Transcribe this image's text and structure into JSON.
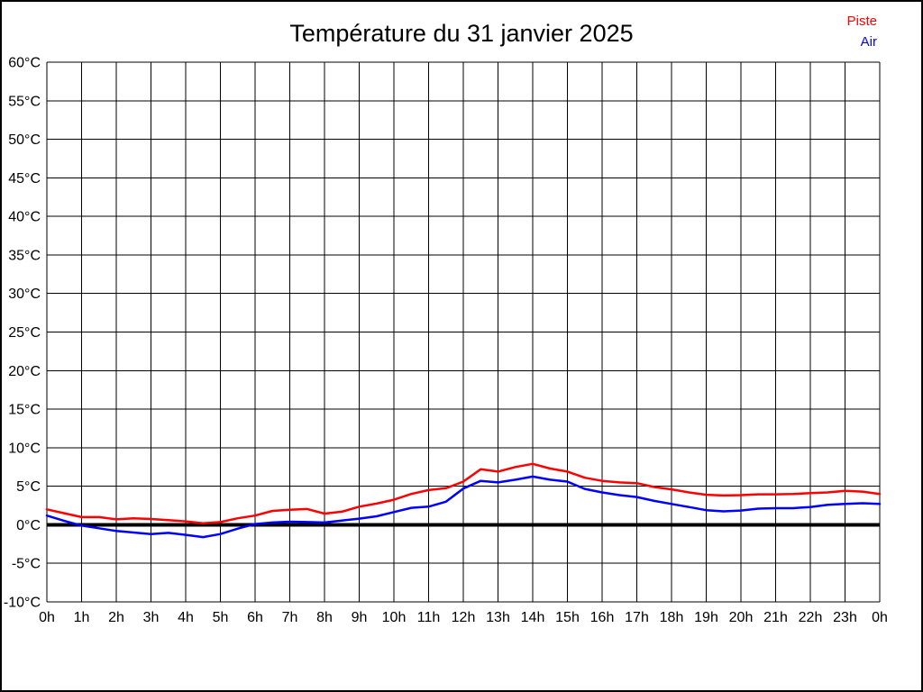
{
  "title": "Température du 31 janvier 2025",
  "legend": {
    "position": "top-right",
    "items": [
      {
        "label": "Piste",
        "color": "#ff0000"
      },
      {
        "label": "Air",
        "color": "#0000ff"
      }
    ]
  },
  "colors": {
    "background": "#ffffff",
    "border": "#000000",
    "grid": "#000000",
    "zero_line": "#000000",
    "tick_text": "#000000",
    "piste": "#ff0000",
    "air": "#0000ff"
  },
  "chart_data": {
    "type": "line",
    "title": "Température du 31 janvier 2025",
    "xlabel": "",
    "ylabel": "",
    "grid": true,
    "legend_position": "top-right",
    "xlim": [
      0,
      24
    ],
    "ylim": [
      -10,
      60
    ],
    "y_ticks": [
      60,
      55,
      50,
      45,
      40,
      35,
      30,
      25,
      20,
      15,
      10,
      5,
      0,
      -5,
      -10
    ],
    "y_tick_labels": [
      "60°C",
      "55°C",
      "50°C",
      "45°C",
      "40°C",
      "35°C",
      "30°C",
      "25°C",
      "20°C",
      "15°C",
      "10°C",
      "5°C",
      "0°C",
      "-5°C",
      "-10°C"
    ],
    "x_tick_hours": [
      0,
      1,
      2,
      3,
      4,
      5,
      6,
      7,
      8,
      9,
      10,
      11,
      12,
      13,
      14,
      15,
      16,
      17,
      18,
      19,
      20,
      21,
      22,
      23,
      24
    ],
    "x_tick_labels": [
      "0h",
      "1h",
      "2h",
      "3h",
      "4h",
      "5h",
      "6h",
      "7h",
      "8h",
      "9h",
      "10h",
      "11h",
      "12h",
      "13h",
      "14h",
      "15h",
      "16h",
      "17h",
      "18h",
      "19h",
      "20h",
      "21h",
      "22h",
      "23h",
      "0h"
    ],
    "zero_line": true,
    "x": [
      0,
      0.5,
      1,
      1.5,
      2,
      2.5,
      3,
      3.5,
      4,
      4.5,
      5,
      5.5,
      6,
      6.5,
      7,
      7.5,
      8,
      8.5,
      9,
      9.5,
      10,
      10.5,
      11,
      11.5,
      12,
      12.5,
      13,
      13.5,
      14,
      14.5,
      15,
      15.5,
      16,
      16.5,
      17,
      17.5,
      18,
      18.5,
      19,
      19.5,
      20,
      20.5,
      21,
      21.5,
      22,
      22.5,
      23,
      23.5,
      24
    ],
    "series": [
      {
        "name": "Piste",
        "color": "#ff0000",
        "values": [
          2.0,
          1.5,
          1.0,
          1.0,
          0.7,
          0.85,
          0.75,
          0.6,
          0.45,
          0.2,
          0.35,
          0.85,
          1.2,
          1.8,
          1.95,
          2.05,
          1.45,
          1.7,
          2.35,
          2.75,
          3.25,
          4.0,
          4.5,
          4.75,
          5.6,
          7.2,
          6.9,
          7.5,
          7.9,
          7.3,
          6.9,
          6.1,
          5.7,
          5.5,
          5.4,
          4.9,
          4.6,
          4.2,
          3.9,
          3.8,
          3.85,
          3.95,
          3.95,
          4.0,
          4.1,
          4.2,
          4.4,
          4.3,
          4.0
        ]
      },
      {
        "name": "Air",
        "color": "#0000ff",
        "values": [
          1.2,
          0.5,
          -0.1,
          -0.45,
          -0.8,
          -1.0,
          -1.2,
          -1.05,
          -1.3,
          -1.6,
          -1.2,
          -0.5,
          0.1,
          0.3,
          0.4,
          0.35,
          0.3,
          0.55,
          0.8,
          1.1,
          1.65,
          2.2,
          2.35,
          3.0,
          4.7,
          5.7,
          5.5,
          5.85,
          6.25,
          5.85,
          5.6,
          4.65,
          4.2,
          3.85,
          3.6,
          3.1,
          2.7,
          2.3,
          1.9,
          1.75,
          1.85,
          2.1,
          2.15,
          2.15,
          2.3,
          2.6,
          2.7,
          2.8,
          2.7
        ]
      }
    ]
  }
}
